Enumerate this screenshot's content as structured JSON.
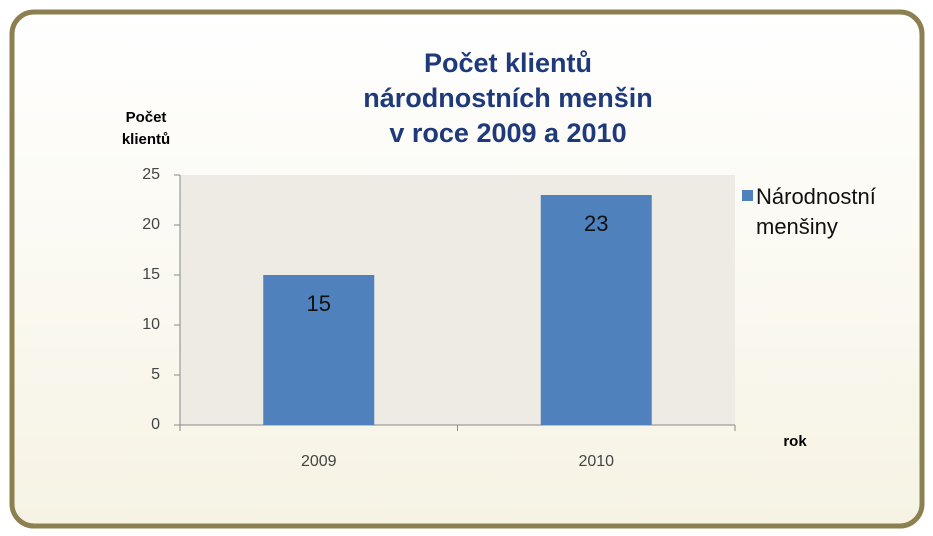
{
  "chart_data": {
    "type": "bar",
    "title": [
      "Počet klientů",
      "národnostních menšin",
      "v roce 2009 a 2010"
    ],
    "y_label": [
      "Počet",
      "klientů"
    ],
    "x_label": "rok",
    "categories": [
      "2009",
      "2010"
    ],
    "series": [
      {
        "name": "Národnostní menšiny",
        "color": "#4f81bd",
        "values": [
          15,
          23
        ]
      }
    ],
    "ylim": [
      0,
      25
    ],
    "yticks": [
      0,
      5,
      10,
      15,
      20,
      25
    ],
    "legend": "right",
    "data_labels": true
  }
}
